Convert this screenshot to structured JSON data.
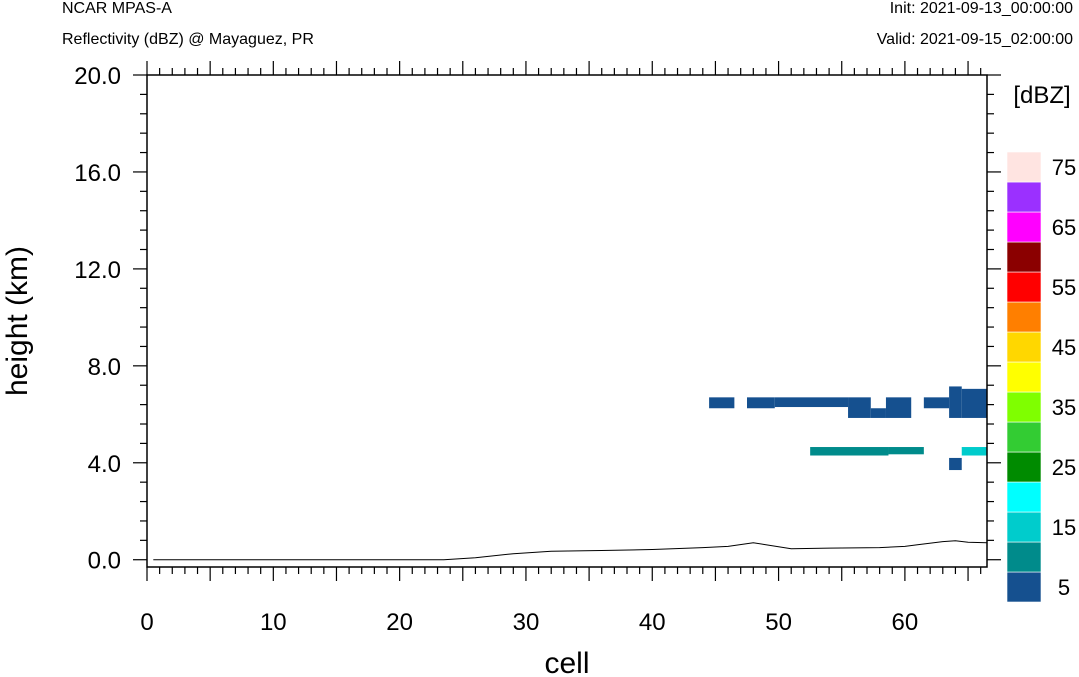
{
  "header": {
    "model": "NCAR MPAS-A",
    "field": "Reflectivity (dBZ) @ Mayaguez, PR",
    "init": "Init: 2021-09-13_00:00:00",
    "valid": "Valid: 2021-09-15_02:00:00"
  },
  "chart_data": {
    "type": "heatmap",
    "xlabel": "cell",
    "ylabel": "height (km)",
    "xlim": [
      0,
      66.5
    ],
    "ylim": [
      -0.3,
      20.0
    ],
    "x_ticks": [
      0,
      10,
      20,
      30,
      40,
      50,
      60
    ],
    "x_tick_labels": [
      "0",
      "10",
      "20",
      "30",
      "40",
      "50",
      "60"
    ],
    "y_ticks": [
      0,
      4,
      8,
      12,
      16,
      20
    ],
    "y_tick_labels": [
      "0.0",
      "4.0",
      "8.0",
      "12.0",
      "16.0",
      "20.0"
    ],
    "colorbar": {
      "units_label": "[dBZ]",
      "levels": [
        5,
        10,
        15,
        20,
        25,
        30,
        35,
        40,
        45,
        50,
        55,
        60,
        65,
        70,
        75
      ],
      "tick_labels": [
        "5",
        "15",
        "25",
        "35",
        "45",
        "55",
        "65",
        "75"
      ],
      "tick_values": [
        5,
        15,
        25,
        35,
        45,
        55,
        65,
        75
      ],
      "colors": [
        "#15508f",
        "#008b8b",
        "#00cccc",
        "#00ffff",
        "#008b00",
        "#33cc33",
        "#7fff00",
        "#ffff00",
        "#ffd700",
        "#ff7f00",
        "#ff0000",
        "#8b0000",
        "#ff00ff",
        "#9b30ff",
        "#ffe4e1"
      ]
    },
    "cells": [
      {
        "x0": 44.5,
        "x1": 46.5,
        "y0": 6.25,
        "y1": 6.7,
        "dbz": 5
      },
      {
        "x0": 47.5,
        "x1": 49.7,
        "y0": 6.25,
        "y1": 6.7,
        "dbz": 5
      },
      {
        "x0": 49.7,
        "x1": 55.5,
        "y0": 6.3,
        "y1": 6.7,
        "dbz": 5
      },
      {
        "x0": 55.5,
        "x1": 57.3,
        "y0": 5.85,
        "y1": 6.7,
        "dbz": 5
      },
      {
        "x0": 57.3,
        "x1": 58.5,
        "y0": 5.85,
        "y1": 6.25,
        "dbz": 5
      },
      {
        "x0": 58.5,
        "x1": 60.5,
        "y0": 5.85,
        "y1": 6.7,
        "dbz": 5
      },
      {
        "x0": 61.5,
        "x1": 63.5,
        "y0": 6.25,
        "y1": 6.7,
        "dbz": 5
      },
      {
        "x0": 63.5,
        "x1": 64.5,
        "y0": 5.85,
        "y1": 7.15,
        "dbz": 5
      },
      {
        "x0": 64.5,
        "x1": 66.5,
        "y0": 5.85,
        "y1": 7.05,
        "dbz": 5
      },
      {
        "x0": 52.5,
        "x1": 58.7,
        "y0": 4.3,
        "y1": 4.65,
        "dbz": 10
      },
      {
        "x0": 58.7,
        "x1": 61.5,
        "y0": 4.35,
        "y1": 4.65,
        "dbz": 10
      },
      {
        "x0": 64.5,
        "x1": 66.5,
        "y0": 4.3,
        "y1": 4.65,
        "dbz": 15
      },
      {
        "x0": 63.5,
        "x1": 64.5,
        "y0": 3.7,
        "y1": 4.2,
        "dbz": 5
      }
    ],
    "terrain": {
      "x": [
        0.5,
        23.5,
        26,
        29,
        32,
        36,
        40,
        44,
        46,
        48,
        49,
        51,
        54,
        58,
        60,
        61,
        63,
        64,
        65,
        66.5
      ],
      "y": [
        0.0,
        0.0,
        0.08,
        0.25,
        0.35,
        0.38,
        0.42,
        0.5,
        0.55,
        0.7,
        0.62,
        0.45,
        0.48,
        0.5,
        0.55,
        0.62,
        0.75,
        0.78,
        0.72,
        0.7
      ]
    }
  }
}
